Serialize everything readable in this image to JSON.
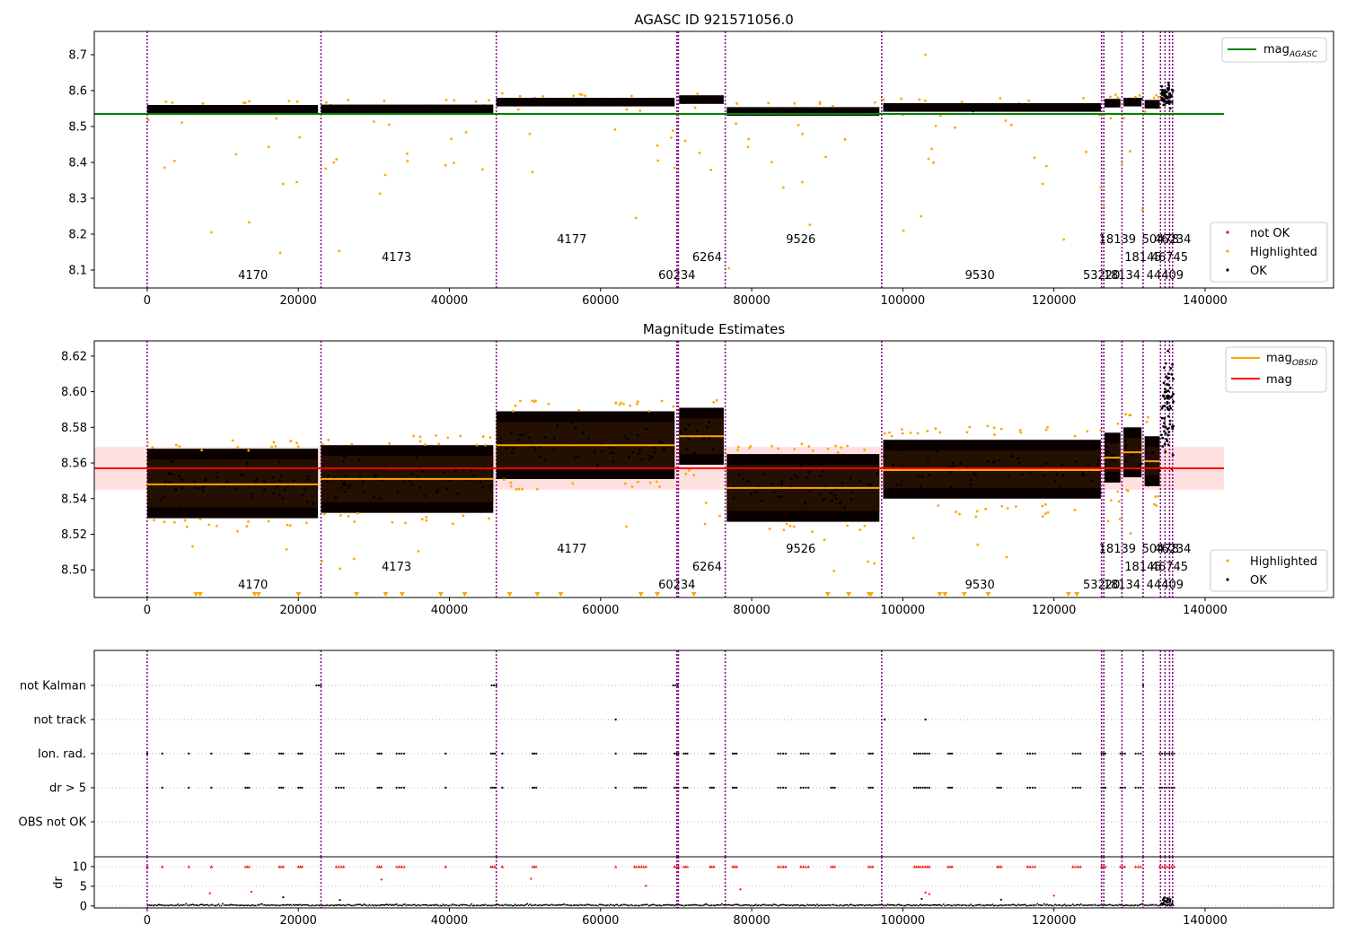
{
  "colors": {
    "not_ok": "#ff0000",
    "highlighted": "#ffa500",
    "ok": "#000000",
    "obsid_line": "#800080",
    "mag_agasc": "#008000",
    "mag_obsid": "#ffa500",
    "mag": "#ff0000",
    "mag_band": "#ffcccc"
  },
  "obsids": [
    {
      "x": 0,
      "label": "4170"
    },
    {
      "x": 23000,
      "label": "4173"
    },
    {
      "x": 46200,
      "label": "4177"
    },
    {
      "x": 70100,
      "label": "60234"
    },
    {
      "x": 70300,
      "label": "6264"
    },
    {
      "x": 76500,
      "label": "9526"
    },
    {
      "x": 97200,
      "label": "9530"
    },
    {
      "x": 126300,
      "label": "53220"
    },
    {
      "x": 126600,
      "label": "18139"
    },
    {
      "x": 129000,
      "label": "18134"
    },
    {
      "x": 131800,
      "label": "18145"
    },
    {
      "x": 134100,
      "label": "50478"
    },
    {
      "x": 134700,
      "label": "44409"
    },
    {
      "x": 135300,
      "label": "46745"
    },
    {
      "x": 135700,
      "label": "46234"
    }
  ],
  "chart_data": [
    {
      "type": "scatter",
      "title": "AGASC ID 921571056.0",
      "xlim": [
        -7000,
        157000
      ],
      "ylim": [
        8.05,
        8.765
      ],
      "xticks": [
        0,
        20000,
        40000,
        60000,
        80000,
        100000,
        120000,
        140000
      ],
      "xtick_labels": [
        "0",
        "20000",
        "40000",
        "60000",
        "80000",
        "100000",
        "120000",
        "140000"
      ],
      "yticks": [
        8.1,
        8.2,
        8.3,
        8.4,
        8.5,
        8.6,
        8.7
      ],
      "ytick_labels": [
        "8.1",
        "8.2",
        "8.3",
        "8.4",
        "8.5",
        "8.6",
        "8.7"
      ],
      "mag_agasc": 8.535,
      "mag_agasc_xrange": [
        -7000,
        142500
      ],
      "obsid_segments": [
        {
          "x0": 0,
          "x1": 22600,
          "mean": 8.548
        },
        {
          "x0": 23000,
          "x1": 45800,
          "mean": 8.549
        },
        {
          "x0": 46200,
          "x1": 69800,
          "mean": 8.568
        },
        {
          "x0": 70400,
          "x1": 76300,
          "mean": 8.575
        },
        {
          "x0": 76700,
          "x1": 96900,
          "mean": 8.542
        },
        {
          "x0": 97400,
          "x1": 126200,
          "mean": 8.553
        },
        {
          "x0": 126700,
          "x1": 128800,
          "mean": 8.565
        },
        {
          "x0": 129200,
          "x1": 131600,
          "mean": 8.568
        },
        {
          "x0": 132000,
          "x1": 134000,
          "mean": 8.562
        }
      ],
      "legend_lines": [
        {
          "label": "mag",
          "sub": "AGASC"
        }
      ],
      "legend_points": [
        "not OK",
        "Highlighted",
        "OK"
      ],
      "legend_lines_placement": "top-right",
      "legend_points_placement": "bottom-right"
    },
    {
      "type": "scatter",
      "title": "Magnitude Estimates",
      "xlim": [
        -7000,
        157000
      ],
      "ylim": [
        8.4845,
        8.6285
      ],
      "xticks": [
        0,
        20000,
        40000,
        60000,
        80000,
        100000,
        120000,
        140000
      ],
      "xtick_labels": [
        "0",
        "20000",
        "40000",
        "60000",
        "80000",
        "100000",
        "120000",
        "140000"
      ],
      "yticks": [
        8.5,
        8.52,
        8.54,
        8.56,
        8.58,
        8.6,
        8.62
      ],
      "ytick_labels": [
        "8.50",
        "8.52",
        "8.54",
        "8.56",
        "8.58",
        "8.60",
        "8.62"
      ],
      "mag": 8.557,
      "mag_band": [
        8.545,
        8.569
      ],
      "mag_xrange": [
        -7000,
        142500
      ],
      "obsid_means": [
        {
          "x0": 0,
          "x1": 22600,
          "mean": 8.548,
          "lo": 8.535,
          "hi": 8.562
        },
        {
          "x0": 23000,
          "x1": 45800,
          "mean": 8.551,
          "lo": 8.538,
          "hi": 8.564
        },
        {
          "x0": 46200,
          "x1": 69800,
          "mean": 8.57,
          "lo": 8.557,
          "hi": 8.583
        },
        {
          "x0": 70400,
          "x1": 76300,
          "mean": 8.575,
          "lo": 8.565,
          "hi": 8.585
        },
        {
          "x0": 76700,
          "x1": 96900,
          "mean": 8.546,
          "lo": 8.533,
          "hi": 8.559
        },
        {
          "x0": 97400,
          "x1": 126200,
          "mean": 8.556,
          "lo": 8.546,
          "hi": 8.567
        },
        {
          "x0": 126700,
          "x1": 128800,
          "mean": 8.563,
          "lo": 8.555,
          "hi": 8.571
        },
        {
          "x0": 129200,
          "x1": 131600,
          "mean": 8.566,
          "lo": 8.558,
          "hi": 8.574
        },
        {
          "x0": 132000,
          "x1": 134000,
          "mean": 8.561,
          "lo": 8.553,
          "hi": 8.569
        }
      ],
      "legend_lines": [
        {
          "label": "mag",
          "sub": "OBSID"
        },
        {
          "label": "mag",
          "sub": ""
        }
      ],
      "legend_points": [
        "Highlighted",
        "OK"
      ],
      "legend_lines_placement": "top-right",
      "legend_points_placement": "bottom-right"
    },
    {
      "type": "scatter",
      "title": "",
      "xlim": [
        -7000,
        157000
      ],
      "flag_rows": [
        "not Kalman",
        "not track",
        "Ion. rad.",
        "dr > 5",
        "OBS not OK"
      ],
      "flag_positions": {
        "not Kalman": [
          [
            22400,
            23000
          ],
          [
            45600,
            46200
          ],
          [
            69600,
            70200
          ],
          [
            131800,
            131800
          ]
        ],
        "not track": [
          [
            62000,
            62000
          ],
          [
            97600,
            97600
          ],
          [
            103000,
            103000
          ]
        ],
        "Ion. rad.": [
          [
            0,
            0
          ],
          [
            2000,
            2000
          ],
          [
            5500,
            5500
          ],
          [
            8500,
            8500
          ],
          [
            13000,
            13500
          ],
          [
            17500,
            18000
          ],
          [
            20000,
            20500
          ],
          [
            25000,
            26000
          ],
          [
            30500,
            31000
          ],
          [
            33000,
            34000
          ],
          [
            39500,
            39500
          ],
          [
            45500,
            46000
          ],
          [
            47000,
            47000
          ],
          [
            51000,
            51500
          ],
          [
            62000,
            62000
          ],
          [
            64500,
            66000
          ],
          [
            69800,
            70300
          ],
          [
            71000,
            71500
          ],
          [
            74500,
            75000
          ],
          [
            77500,
            78000
          ],
          [
            83500,
            84500
          ],
          [
            86500,
            87500
          ],
          [
            90500,
            91000
          ],
          [
            95500,
            96000
          ],
          [
            101500,
            103500
          ],
          [
            106000,
            106500
          ],
          [
            112500,
            113000
          ],
          [
            116500,
            117500
          ],
          [
            122500,
            123500
          ],
          [
            126300,
            126800
          ],
          [
            128800,
            129400
          ],
          [
            130800,
            131500
          ],
          [
            134000,
            135900
          ]
        ],
        "dr > 5": [
          [
            0,
            0
          ],
          [
            2000,
            2000
          ],
          [
            5500,
            5500
          ],
          [
            8500,
            8500
          ],
          [
            13000,
            13500
          ],
          [
            17500,
            18000
          ],
          [
            20000,
            20500
          ],
          [
            25000,
            26000
          ],
          [
            30500,
            31000
          ],
          [
            33000,
            34000
          ],
          [
            39500,
            39500
          ],
          [
            45500,
            46000
          ],
          [
            47000,
            47000
          ],
          [
            51000,
            51500
          ],
          [
            62000,
            62000
          ],
          [
            64500,
            66000
          ],
          [
            69800,
            70300
          ],
          [
            71000,
            71500
          ],
          [
            74500,
            75000
          ],
          [
            77500,
            78000
          ],
          [
            83500,
            84500
          ],
          [
            86500,
            87500
          ],
          [
            90500,
            91000
          ],
          [
            95500,
            96000
          ],
          [
            101500,
            103500
          ],
          [
            106000,
            106500
          ],
          [
            112500,
            113000
          ],
          [
            116500,
            117500
          ],
          [
            122500,
            123500
          ],
          [
            126300,
            126800
          ],
          [
            128800,
            129400
          ],
          [
            130800,
            131500
          ],
          [
            134000,
            135900
          ]
        ],
        "OBS not OK": []
      }
    },
    {
      "type": "scatter",
      "title": "",
      "ylabel": "dr",
      "xlim": [
        -7000,
        157000
      ],
      "ylim": [
        -0.5,
        12.5
      ],
      "yticks": [
        0,
        5,
        10
      ],
      "ytick_labels": [
        "0",
        "5",
        "10"
      ],
      "xticks": [
        0,
        20000,
        40000,
        60000,
        80000,
        100000,
        120000,
        140000
      ],
      "xtick_labels": [
        "0",
        "20000",
        "40000",
        "60000",
        "80000",
        "100000",
        "120000",
        "140000"
      ],
      "clip_value": 10,
      "dr_outliers": [
        {
          "x": 8300,
          "y": 3.2
        },
        {
          "x": 13800,
          "y": 3.6
        },
        {
          "x": 31000,
          "y": 6.7
        },
        {
          "x": 50800,
          "y": 6.9
        },
        {
          "x": 66000,
          "y": 5.1
        },
        {
          "x": 78500,
          "y": 4.2
        },
        {
          "x": 103000,
          "y": 3.4
        },
        {
          "x": 103500,
          "y": 3.0
        },
        {
          "x": 102500,
          "y": 1.8
        },
        {
          "x": 113000,
          "y": 1.6
        },
        {
          "x": 120000,
          "y": 2.6
        },
        {
          "x": 18000,
          "y": 2.2
        },
        {
          "x": 25500,
          "y": 1.5
        }
      ]
    }
  ]
}
